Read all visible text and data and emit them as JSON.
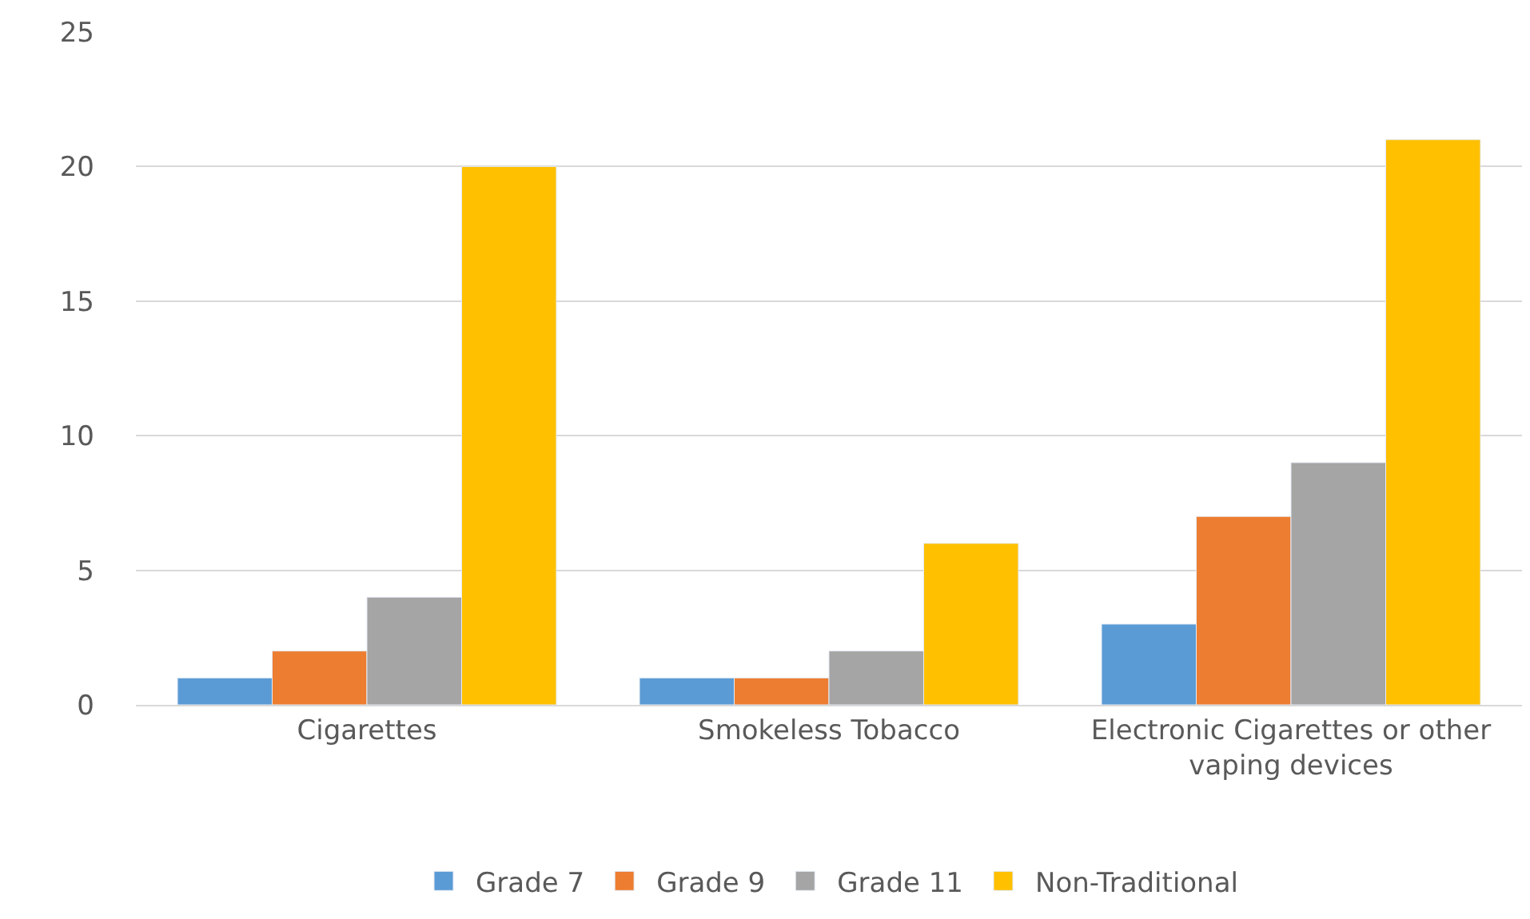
{
  "chart_data": {
    "type": "bar",
    "categories": [
      "Cigarettes",
      "Smokeless Tobacco",
      "Electronic Cigarettes or other vaping devices"
    ],
    "series": [
      {
        "name": "Grade 7",
        "color": "#5b9bd5",
        "values": [
          1,
          1,
          3
        ]
      },
      {
        "name": "Grade 9",
        "color": "#ed7d31",
        "values": [
          2,
          1,
          7
        ]
      },
      {
        "name": "Grade 11",
        "color": "#a5a5a5",
        "values": [
          4,
          2,
          9
        ]
      },
      {
        "name": "Non-Traditional",
        "color": "#ffc000",
        "values": [
          20,
          6,
          21
        ]
      }
    ],
    "ylim": [
      0,
      25
    ],
    "yticks": [
      0,
      5,
      10,
      15,
      20,
      25
    ],
    "grid": "y",
    "legend": "bottom"
  }
}
